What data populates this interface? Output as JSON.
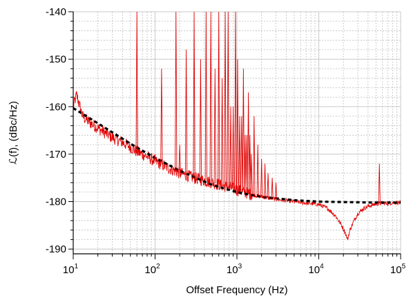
{
  "chart_data": {
    "type": "line",
    "title": "",
    "xlabel": "Offset Frequency (Hz)",
    "ylabel": "ℒ(f), (dBc/Hz)",
    "xscale": "log",
    "xlim": [
      10,
      100000
    ],
    "ylim": [
      -191,
      -140
    ],
    "grid": true,
    "legend": "none",
    "x_ticks": [
      {
        "base": "10",
        "exp": "1",
        "value": 10
      },
      {
        "base": "10",
        "exp": "2",
        "value": 100
      },
      {
        "base": "10",
        "exp": "3",
        "value": 1000
      },
      {
        "base": "10",
        "exp": "4",
        "value": 10000
      },
      {
        "base": "10",
        "exp": "5",
        "value": 100000
      }
    ],
    "y_ticks": [
      {
        "label": "-140",
        "value": -140
      },
      {
        "label": "-150",
        "value": -150
      },
      {
        "label": "-160",
        "value": -160
      },
      {
        "label": "-170",
        "value": -170
      },
      {
        "label": "-180",
        "value": -180
      },
      {
        "label": "-190",
        "value": -190
      }
    ],
    "series": [
      {
        "color": "#e00000",
        "style": "solid",
        "x": [
          10,
          11,
          13,
          15,
          20,
          30,
          40,
          50,
          60,
          80,
          100,
          150,
          200,
          300,
          500,
          700,
          1000,
          1500,
          2000,
          3000,
          5000,
          7000,
          10000,
          13000,
          16000,
          19000,
          21000,
          22500,
          24000,
          27000,
          30000,
          35000,
          40000,
          50000,
          60000,
          70000,
          80000,
          100000
        ],
        "y": [
          -160,
          -157.5,
          -162,
          -163,
          -164.5,
          -166.5,
          -167.5,
          -168.5,
          -169.5,
          -170.5,
          -171.5,
          -173,
          -174,
          -175,
          -176,
          -176.7,
          -177.5,
          -178.5,
          -179,
          -179.5,
          -180,
          -180.3,
          -180.6,
          -181.5,
          -183,
          -185,
          -186.5,
          -188,
          -186,
          -184,
          -182.5,
          -181.5,
          -181,
          -180.5,
          -180.3,
          -180.4,
          -180.2,
          -180.2
        ]
      },
      {
        "color": "#000000",
        "style": "dashed",
        "x": [
          10,
          20,
          50,
          100,
          200,
          500,
          1000,
          2000,
          5000,
          10000,
          20000,
          50000,
          100000
        ],
        "y": [
          -160.3,
          -163.5,
          -167.8,
          -170.8,
          -173.5,
          -176.5,
          -178,
          -179,
          -179.7,
          -180,
          -180.1,
          -180.2,
          -180.2
        ]
      }
    ],
    "spurs": {
      "color": "#e00000",
      "x": [
        60,
        100,
        120,
        180,
        200,
        240,
        300,
        360,
        420,
        480,
        540,
        600,
        660,
        720,
        780,
        840,
        900,
        960,
        1020,
        1080,
        1140,
        1200,
        1260,
        1320,
        1380,
        1440,
        1500,
        1620,
        1800,
        2000,
        2200,
        2400,
        2700,
        3000,
        55000
      ],
      "top": [
        -140,
        -170,
        -152,
        -140,
        -168,
        -148,
        -140,
        -150,
        -140,
        -140,
        -152,
        -140,
        -154,
        -140,
        -140,
        -160,
        -160,
        -140,
        -150,
        -162,
        -162,
        -152,
        -166,
        -166,
        -157,
        -166,
        -170,
        -162,
        -168,
        -171,
        -172,
        -174,
        -175,
        -176,
        -172
      ]
    }
  }
}
